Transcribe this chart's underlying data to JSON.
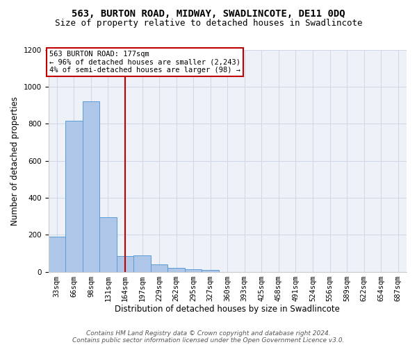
{
  "title": "563, BURTON ROAD, MIDWAY, SWADLINCOTE, DE11 0DQ",
  "subtitle": "Size of property relative to detached houses in Swadlincote",
  "xlabel": "Distribution of detached houses by size in Swadlincote",
  "ylabel": "Number of detached properties",
  "bar_labels": [
    "33sqm",
    "66sqm",
    "98sqm",
    "131sqm",
    "164sqm",
    "197sqm",
    "229sqm",
    "262sqm",
    "295sqm",
    "327sqm",
    "360sqm",
    "393sqm",
    "425sqm",
    "458sqm",
    "491sqm",
    "524sqm",
    "556sqm",
    "589sqm",
    "622sqm",
    "654sqm",
    "687sqm"
  ],
  "bar_heights": [
    190,
    815,
    920,
    295,
    85,
    90,
    38,
    20,
    15,
    10,
    0,
    0,
    0,
    0,
    0,
    0,
    0,
    0,
    0,
    0,
    0
  ],
  "bar_color": "#aec6e8",
  "bar_edge_color": "#5b9bd5",
  "vline_x": 4.5,
  "vline_color": "#c00000",
  "annotation_text": "563 BURTON ROAD: 177sqm\n← 96% of detached houses are smaller (2,243)\n4% of semi-detached houses are larger (98) →",
  "annotation_box_color": "#ffffff",
  "annotation_box_edge_color": "#c00000",
  "ylim": [
    0,
    1200
  ],
  "yticks": [
    0,
    200,
    400,
    600,
    800,
    1000,
    1200
  ],
  "grid_color": "#d0d8e8",
  "background_color": "#eef2f8",
  "footer_line1": "Contains HM Land Registry data © Crown copyright and database right 2024.",
  "footer_line2": "Contains public sector information licensed under the Open Government Licence v3.0.",
  "title_fontsize": 10,
  "subtitle_fontsize": 9,
  "xlabel_fontsize": 8.5,
  "ylabel_fontsize": 8.5,
  "tick_fontsize": 7.5,
  "annotation_fontsize": 7.5,
  "footer_fontsize": 6.5
}
